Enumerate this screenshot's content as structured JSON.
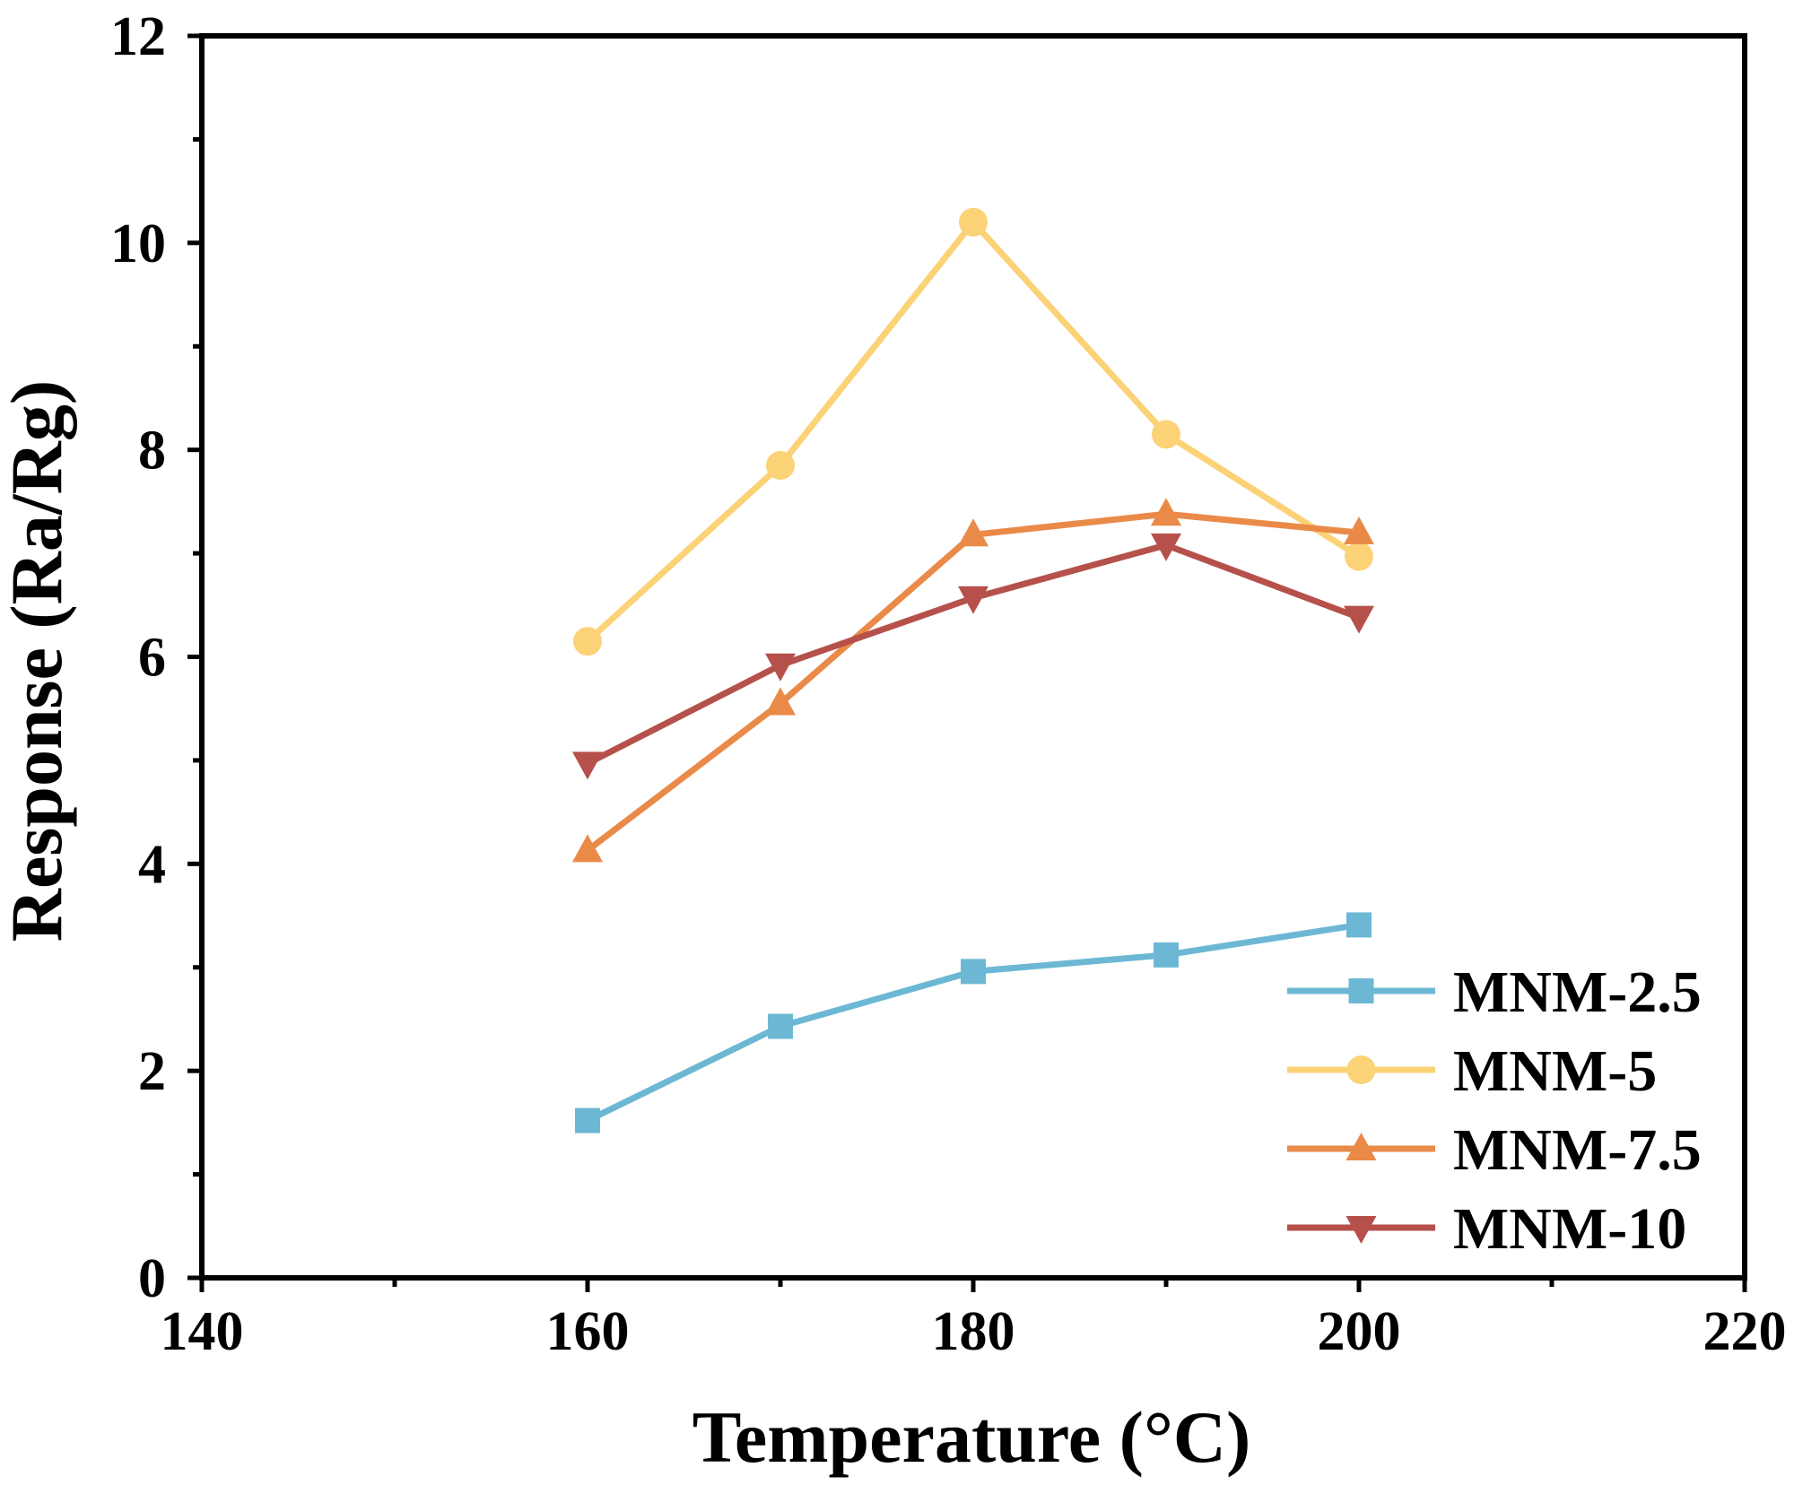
{
  "chart_data": {
    "type": "line",
    "title": "",
    "xlabel": "Temperature (°C)",
    "ylabel": "Response (Ra/Rg)",
    "xlim": [
      140,
      220
    ],
    "ylim": [
      0,
      12
    ],
    "xticks": [
      140,
      160,
      180,
      200,
      220
    ],
    "yticks": [
      0,
      2,
      4,
      6,
      8,
      10,
      12
    ],
    "x": [
      160,
      170,
      180,
      190,
      200
    ],
    "legend_position": "bottom-right",
    "grid": false,
    "series": [
      {
        "name": "MNM-2.5",
        "marker": "square",
        "color": "#6cb8d4",
        "values": [
          1.52,
          2.43,
          2.96,
          3.12,
          3.41
        ]
      },
      {
        "name": "MNM-5",
        "marker": "circle",
        "color": "#fcd277",
        "values": [
          6.15,
          7.85,
          10.2,
          8.15,
          6.97
        ]
      },
      {
        "name": "MNM-7.5",
        "marker": "triangle-up",
        "color": "#ea8a48",
        "values": [
          4.13,
          5.55,
          7.18,
          7.38,
          7.2
        ]
      },
      {
        "name": "MNM-10",
        "marker": "triangle-down",
        "color": "#b5514a",
        "values": [
          4.97,
          5.92,
          6.57,
          7.08,
          6.38
        ]
      }
    ]
  }
}
